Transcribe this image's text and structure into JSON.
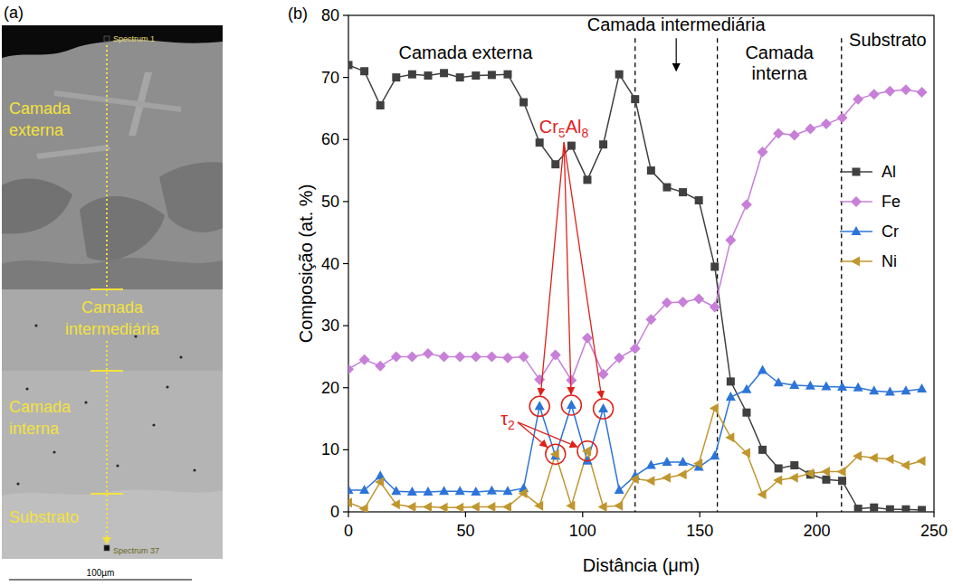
{
  "image": {
    "panel_label": "(a)",
    "spectra": [
      "Spectrum 1",
      "Spectrum 37"
    ],
    "layers": [
      "Camada externa",
      "Camada intermediária",
      "Camada interna",
      "Substrato"
    ],
    "scale_bar": "100µm"
  },
  "chart_data": {
    "type": "line",
    "panel_label": "(b)",
    "x_label": "Distância (μm)",
    "y_label": "Composição (at. %)",
    "xlim": [
      0,
      250
    ],
    "xticks": [
      0,
      50,
      100,
      150,
      200,
      250
    ],
    "ylim": [
      0,
      80
    ],
    "yticks": [
      0,
      10,
      20,
      30,
      40,
      50,
      60,
      70,
      80
    ],
    "legend": "right",
    "x": [
      0,
      6.8,
      13.6,
      20.4,
      27.2,
      34,
      40.8,
      47.6,
      54.4,
      61.2,
      68,
      74.8,
      81.6,
      88.4,
      95.2,
      102,
      108.8,
      115.6,
      122.4,
      129.2,
      136,
      142.8,
      149.6,
      156.4,
      163.2,
      170,
      176.8,
      183.6,
      190.4,
      197.2,
      204,
      210.8,
      217.6,
      224.4,
      231.2,
      238,
      244.8
    ],
    "series": [
      {
        "name": "Al",
        "color": "#404040",
        "marker": "square",
        "values": [
          72,
          71,
          65.5,
          70,
          70.5,
          70.3,
          70.7,
          70,
          70.3,
          70.4,
          70.5,
          66,
          59.5,
          56,
          59,
          53.5,
          59.2,
          70.5,
          66.5,
          55,
          52.3,
          51.5,
          50.2,
          39.5,
          21,
          16,
          10,
          7,
          7.5,
          6,
          5.2,
          5,
          0.5,
          0.7,
          0.4,
          0.4,
          0.3
        ]
      },
      {
        "name": "Fe",
        "color": "#c77fd8",
        "marker": "diamond",
        "values": [
          23,
          24.5,
          23.5,
          25,
          25,
          25.5,
          25,
          25,
          25,
          25,
          24.8,
          25,
          21.3,
          25.3,
          21.2,
          28,
          22.2,
          24.8,
          26.3,
          31,
          33.7,
          33.8,
          34.3,
          33,
          43.8,
          49.5,
          58,
          61,
          60.7,
          61.7,
          62.5,
          63.5,
          66.5,
          67.3,
          67.8,
          68,
          67.6
        ]
      },
      {
        "name": "Cr",
        "color": "#2d74d8",
        "marker": "triangle",
        "values": [
          3.5,
          3.5,
          5.8,
          3.3,
          3.2,
          3.2,
          3.3,
          3.3,
          3.2,
          3.4,
          3.3,
          3.8,
          17,
          9,
          17.2,
          8.2,
          16.6,
          3.5,
          5.8,
          7.5,
          8,
          8,
          7.2,
          9,
          18.5,
          19.7,
          22.8,
          20.8,
          20.4,
          20.3,
          20.2,
          20.1,
          20,
          19.5,
          19.3,
          19.5,
          19.8
        ]
      },
      {
        "name": "Ni",
        "color": "#c0962e",
        "marker": "triangle-left",
        "values": [
          1.5,
          0.5,
          4.8,
          1.2,
          0.8,
          0.8,
          0.7,
          0.7,
          0.8,
          0.8,
          0.8,
          3,
          1,
          9.3,
          1,
          9.8,
          0.8,
          1,
          5.3,
          5,
          5.5,
          6,
          7.8,
          16.7,
          12,
          9.5,
          2.8,
          5.1,
          5.5,
          6.2,
          6.5,
          6.5,
          9,
          8.7,
          8.5,
          7.5,
          8.2
        ]
      }
    ],
    "boundaries": [
      122.4,
      157.5,
      210.5
    ],
    "region_labels": [
      "Camada externa",
      "Camada intermediária",
      "Camada interna",
      "Substrato"
    ],
    "annotations": [
      {
        "text": "Cr5Al8",
        "series": 2,
        "points": [
          12,
          14,
          16
        ]
      },
      {
        "text": "τ2",
        "series": 3,
        "points": [
          13,
          15
        ]
      }
    ]
  }
}
